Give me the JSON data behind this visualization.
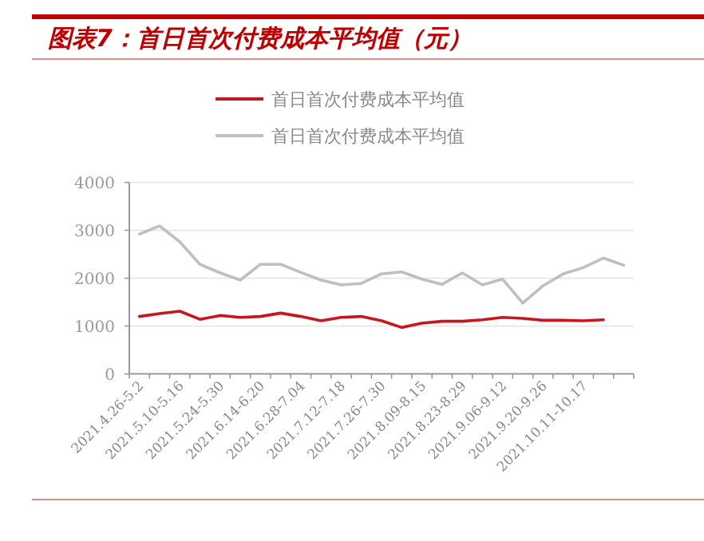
{
  "chart_data": {
    "type": "line",
    "title": "图表7：首日首次付费成本平均值（元）",
    "categories": [
      "2021.4.26-5.2",
      null,
      "2021.5.10-5.16",
      null,
      "2021.5.24-5.30",
      null,
      "2021.6.14-6.20",
      null,
      "2021.6.28-7.04",
      null,
      "2021.7.12-7.18",
      null,
      "2021.7.26-7.30",
      null,
      "2021.8.09-8.15",
      null,
      "2021.8.23-8.29",
      null,
      "2021.9.06-9.12",
      null,
      "2021.9.20-9.26",
      null,
      "2021.10.11-10.17",
      null,
      null
    ],
    "series": [
      {
        "name": "首日首次付费成本平均值",
        "color": "#c8161d",
        "values": [
          1200,
          1260,
          1310,
          1140,
          1220,
          1180,
          1200,
          1270,
          1200,
          1110,
          1180,
          1200,
          1110,
          970,
          1060,
          1100,
          1100,
          1130,
          1180,
          1160,
          1120,
          1120,
          1110,
          1130,
          null
        ]
      },
      {
        "name": "首日首次付费成本平均值",
        "color": "#bfbfbf",
        "values": [
          2920,
          3090,
          2760,
          2290,
          2110,
          1960,
          2290,
          2290,
          2120,
          1960,
          1860,
          1890,
          2090,
          2130,
          1980,
          1870,
          2110,
          1860,
          1980,
          1480,
          1840,
          2090,
          2220,
          2420,
          2270
        ]
      }
    ],
    "ylim": [
      0,
      4000
    ],
    "yticks": [
      0,
      1000,
      2000,
      3000,
      4000
    ],
    "grid": "y",
    "legend": "top"
  }
}
